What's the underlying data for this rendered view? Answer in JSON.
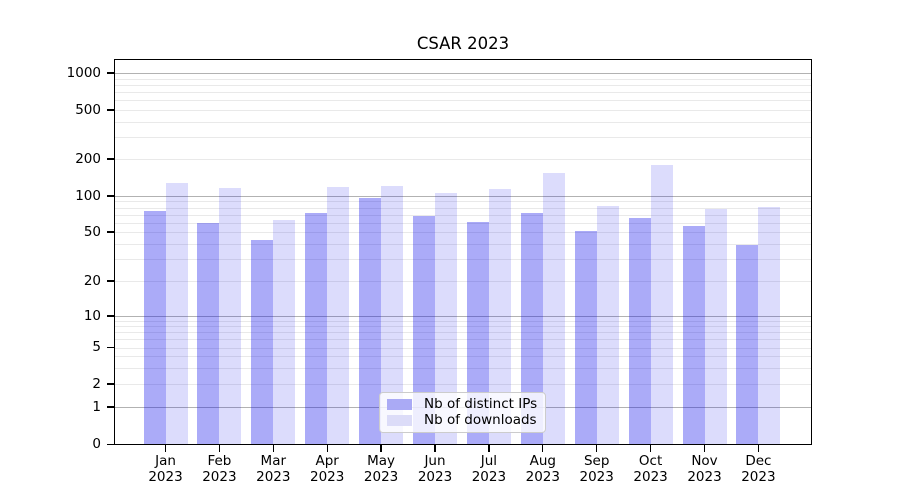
{
  "title": "CSAR 2023",
  "colors": {
    "distinct_ips_bar": "rgba(10,10,235,0.34)",
    "downloads_bar": "rgba(10,10,235,0.14)",
    "distinct_ips_hex": "#aaaaf5",
    "downloads_hex": "#dcdcf8",
    "major_gridline": "#b2b2b2",
    "minor_gridline": "#e9e9e9",
    "axis_frame": "#000000"
  },
  "legend": {
    "items": [
      {
        "key": "distinct_ips",
        "label": "Nb of distinct IPs"
      },
      {
        "key": "downloads",
        "label": "Nb of downloads"
      }
    ]
  },
  "x_axis": {
    "months": [
      "Jan",
      "Feb",
      "Mar",
      "Apr",
      "May",
      "Jun",
      "Jul",
      "Aug",
      "Sep",
      "Oct",
      "Nov",
      "Dec"
    ],
    "year": "2023"
  },
  "y_axis": {
    "tick_labels": [
      "0",
      "1",
      "2",
      "5",
      "10",
      "20",
      "50",
      "100",
      "200",
      "500",
      "1000"
    ]
  },
  "chart_data": {
    "type": "bar",
    "title": "CSAR 2023",
    "categories": [
      "Jan 2023",
      "Feb 2023",
      "Mar 2023",
      "Apr 2023",
      "May 2023",
      "Jun 2023",
      "Jul 2023",
      "Aug 2023",
      "Sep 2023",
      "Oct 2023",
      "Nov 2023",
      "Dec 2023"
    ],
    "series": [
      {
        "name": "Nb of distinct IPs",
        "values": [
          75,
          60,
          43,
          72,
          96,
          68,
          61,
          72,
          51,
          66,
          56,
          39
        ]
      },
      {
        "name": "Nb of downloads",
        "values": [
          128,
          117,
          63,
          119,
          120,
          105,
          114,
          153,
          83,
          180,
          78,
          81
        ]
      }
    ],
    "xlabel": "",
    "ylabel": "",
    "yscale": "symlog",
    "y_ticks": [
      0,
      1,
      2,
      5,
      10,
      20,
      50,
      100,
      200,
      500,
      1000
    ],
    "ylim": [
      0,
      1250
    ],
    "grid": "on",
    "legend_position": "lower center"
  }
}
